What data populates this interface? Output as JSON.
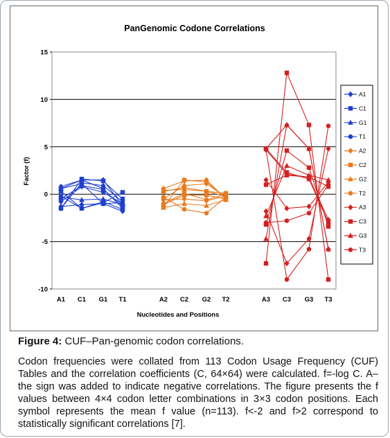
{
  "chart_data": {
    "type": "line",
    "title": "PanGenomic Codone Correlations",
    "xlabel": "Nucleotides and Positions",
    "ylabel": "Factor (f)",
    "ylim": [
      -10,
      15
    ],
    "yticks": [
      15,
      10,
      5,
      0,
      -5,
      -10
    ],
    "gridlines_y": [
      10,
      5,
      -5
    ],
    "legend_position": "right",
    "groups": [
      {
        "categories": [
          "A1",
          "C1",
          "G1",
          "T1"
        ]
      },
      {
        "categories": [
          "A2",
          "C2",
          "G2",
          "T2"
        ]
      },
      {
        "categories": [
          "A3",
          "C3",
          "G3",
          "T3"
        ]
      }
    ],
    "series": [
      {
        "name": "A1",
        "group": 0,
        "color": "#1f3fd0",
        "marker": "diamond",
        "values": [
          [
            0.8,
            1.5,
            1.5,
            -1.2
          ],
          [
            -0.8,
            0.8,
            0.2,
            -1.0
          ],
          [
            -1.5,
            1.2,
            0.9,
            -0.8
          ],
          [
            -1.3,
            -1.1,
            -1.0,
            -1.8
          ]
        ]
      },
      {
        "name": "C1",
        "group": 0,
        "color": "#1f3fd0",
        "marker": "square",
        "values": [
          [
            -1.5,
            1.6,
            1.4,
            -0.5
          ],
          [
            0.6,
            1.5,
            0.6,
            -1.5
          ],
          [
            -0.5,
            0.9,
            0.5,
            -1.3
          ],
          [
            0.3,
            -1.5,
            -0.9,
            0.2
          ]
        ]
      },
      {
        "name": "G1",
        "group": 0,
        "color": "#1f3fd0",
        "marker": "triangle",
        "values": [
          [
            0.6,
            1.1,
            -1.0,
            -0.9
          ],
          [
            -0.3,
            -0.6,
            -0.5,
            -1.1
          ]
        ]
      },
      {
        "name": "T1",
        "group": 0,
        "color": "#1f3fd0",
        "marker": "circle",
        "values": [
          [
            -0.2,
            -1.5,
            -0.8,
            -1.6
          ]
        ]
      },
      {
        "name": "A2",
        "group": 1,
        "color": "#e87a1f",
        "marker": "diamond",
        "values": [
          [
            0.6,
            1.4,
            1.5,
            -0.5
          ],
          [
            -0.5,
            0.9,
            1.1,
            -0.3
          ],
          [
            -0.6,
            -0.5,
            -0.7,
            -0.2
          ]
        ]
      },
      {
        "name": "C2",
        "group": 1,
        "color": "#e87a1f",
        "marker": "square",
        "values": [
          [
            -1.3,
            1.5,
            1.3,
            -0.4
          ],
          [
            0.3,
            0.7,
            0.3,
            0.1
          ],
          [
            -1.1,
            -0.1,
            -0.1,
            -0.5
          ]
        ]
      },
      {
        "name": "G2",
        "group": 1,
        "color": "#e87a1f",
        "marker": "triangle",
        "values": [
          [
            0.4,
            0.5,
            0.3,
            -0.2
          ],
          [
            -1.4,
            -1.0,
            -1.2,
            -0.6
          ]
        ]
      },
      {
        "name": "T2",
        "group": 1,
        "color": "#e87a1f",
        "marker": "circle",
        "values": [
          [
            -0.3,
            -1.6,
            -2.0,
            -0.3
          ],
          [
            -1.0,
            0.1,
            -0.6,
            0.0
          ]
        ]
      },
      {
        "name": "A3",
        "group": 2,
        "color": "#d42020",
        "marker": "diamond",
        "values": [
          [
            4.7,
            2.1,
            1.8,
            -2.7
          ],
          [
            -1.8,
            -7.3,
            -4.7,
            4.8
          ],
          [
            1.5,
            -1.5,
            -1.3,
            1.3
          ],
          [
            4.8,
            7.3,
            4.8,
            -5.8
          ]
        ]
      },
      {
        "name": "C3",
        "group": 2,
        "color": "#d42020",
        "marker": "square",
        "values": [
          [
            -7.3,
            12.8,
            7.3,
            -9.0
          ],
          [
            4.8,
            2.3,
            1.6,
            -3.0
          ],
          [
            -3.2,
            4.6,
            2.8,
            -3.4
          ],
          [
            1.0,
            2.0,
            1.8,
            0.8
          ]
        ]
      },
      {
        "name": "G3",
        "group": 2,
        "color": "#d42020",
        "marker": "triangle",
        "values": [
          [
            -4.7,
            7.3,
            4.8,
            -5.8
          ],
          [
            -2.3,
            3.0,
            2.0,
            1.5
          ]
        ]
      },
      {
        "name": "T3",
        "group": 2,
        "color": "#d42020",
        "marker": "circle",
        "values": [
          [
            4.7,
            -9.0,
            -5.8,
            7.2
          ],
          [
            -3.0,
            -2.8,
            -2.0,
            1.0
          ]
        ]
      }
    ],
    "legend_entries": [
      {
        "name": "A1",
        "color": "#1f3fd0",
        "marker": "diamond"
      },
      {
        "name": "C1",
        "color": "#1f3fd0",
        "marker": "square"
      },
      {
        "name": "G1",
        "color": "#1f3fd0",
        "marker": "triangle"
      },
      {
        "name": "T1",
        "color": "#1f3fd0",
        "marker": "circle"
      },
      {
        "name": "A2",
        "color": "#e87a1f",
        "marker": "diamond"
      },
      {
        "name": "C2",
        "color": "#e87a1f",
        "marker": "square"
      },
      {
        "name": "G2",
        "color": "#e87a1f",
        "marker": "triangle"
      },
      {
        "name": "T2",
        "color": "#e87a1f",
        "marker": "circle"
      },
      {
        "name": "A3",
        "color": "#d42020",
        "marker": "diamond"
      },
      {
        "name": "C3",
        "color": "#d42020",
        "marker": "square"
      },
      {
        "name": "G3",
        "color": "#d42020",
        "marker": "triangle"
      },
      {
        "name": "T3",
        "color": "#d42020",
        "marker": "circle"
      }
    ]
  },
  "caption": {
    "label": "Figure 4:",
    "title": " CUF–Pan-genomic codon correlations.",
    "body": "Codon frequencies were collated from 113 Codon Usage Frequency (CUF) Tables and the correlation coefficients (C, 64×64) were calculated. f=-log C. A–the sign was added to indicate negative correlations. The figure presents the f values between 4×4 codon letter combinations in 3×3 codon positions. Each symbol represents the mean f value (n=113). f<-2 and f>2 correspond to statistically significant correlations [7]."
  }
}
